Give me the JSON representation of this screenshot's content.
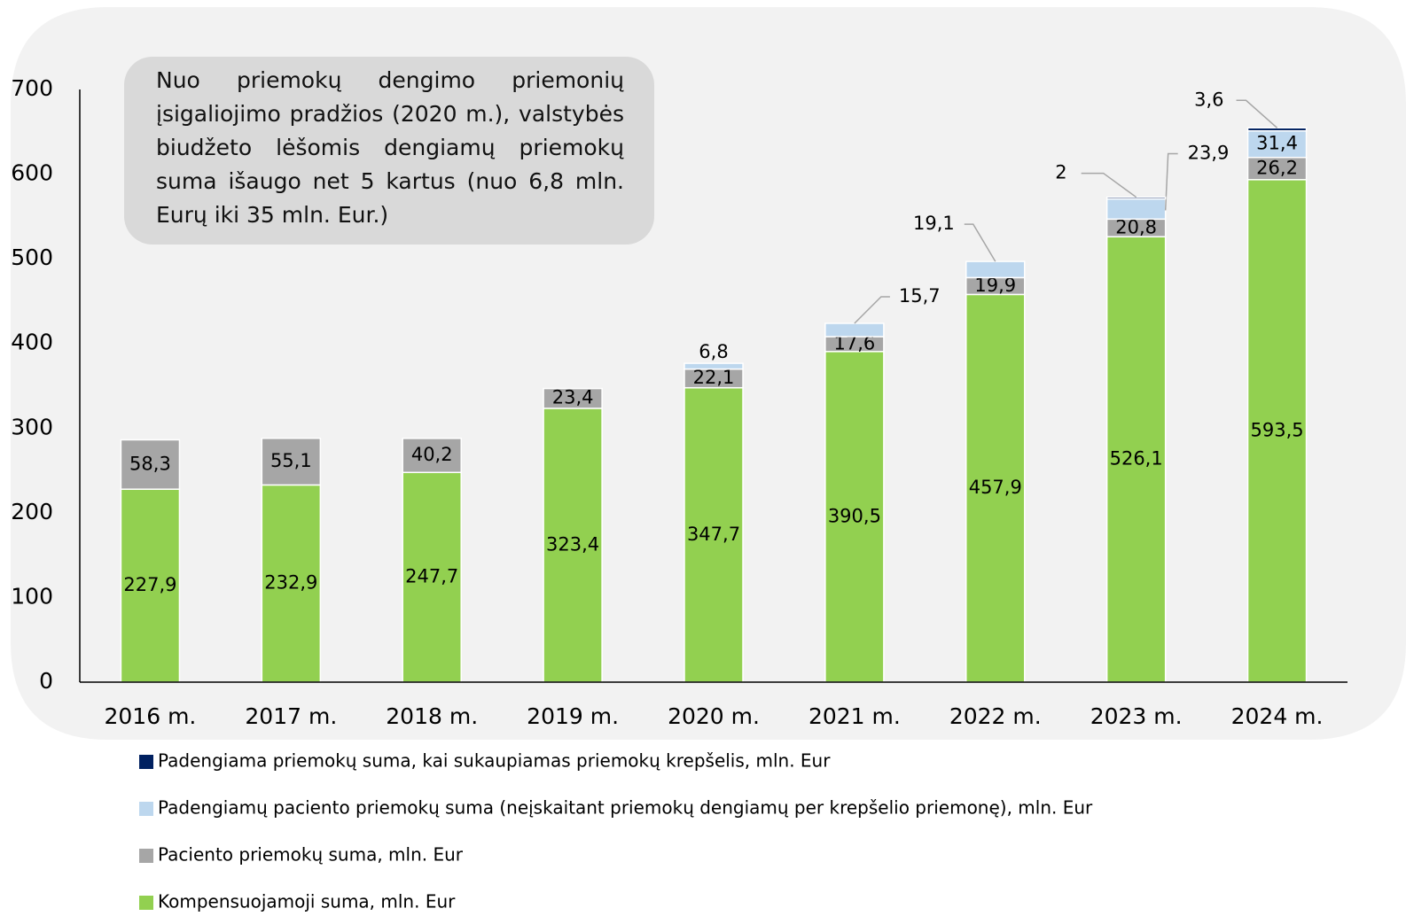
{
  "chart_data": {
    "type": "stacked_bar",
    "annotation": "Nuo priemokų dengimo priemonių įsigaliojimo pradžios (2020 m.), valstybės biudžeto lėšomis dengiamų priemokų suma išaugo net 5 kartus (nuo 6,8 mln. Eurų iki 35 mln. Eur.)",
    "categories": [
      "2016 m.",
      "2017 m.",
      "2018 m.",
      "2019 m.",
      "2020 m.",
      "2021 m.",
      "2022 m.",
      "2023 m.",
      "2024 m."
    ],
    "series": [
      {
        "name": "Kompensuojamoji suma, mln. Eur",
        "color": "#92d050",
        "values": [
          227.9,
          232.9,
          247.7,
          323.4,
          347.7,
          390.5,
          457.9,
          526.1,
          593.5
        ],
        "value_labels": [
          "227,9",
          "232,9",
          "247,7",
          "323,4",
          "347,7",
          "390,5",
          "457,9",
          "526,1",
          "593,5"
        ]
      },
      {
        "name": "Paciento priemokų suma, mln. Eur",
        "color": "#a6a6a6",
        "values": [
          58.3,
          55.1,
          40.2,
          23.4,
          22.1,
          17.6,
          19.9,
          20.8,
          26.2
        ],
        "value_labels": [
          "58,3",
          "55,1",
          "40,2",
          "23,4",
          "22,1",
          "17,6",
          "19,9",
          "20,8",
          "26,2"
        ]
      },
      {
        "name": "Padengiamų paciento priemokų suma (neįskaitant priemokų dengiamų per krepšelio priemonę), mln. Eur",
        "color": "#bdd7ee",
        "values": [
          null,
          null,
          null,
          null,
          6.8,
          15.7,
          19.1,
          23.9,
          31.4
        ],
        "value_labels": [
          null,
          null,
          null,
          null,
          "6,8",
          "15,7",
          "19,1",
          "23,9",
          "31,4"
        ]
      },
      {
        "name": "Padengiama priemokų suma, kai sukaupiamas priemokų krepšelis, mln. Eur",
        "color": "#002060",
        "values": [
          null,
          null,
          null,
          null,
          null,
          null,
          null,
          2,
          3.6
        ],
        "value_labels": [
          null,
          null,
          null,
          null,
          null,
          null,
          null,
          "2",
          "3,6"
        ]
      }
    ],
    "ylim": [
      0,
      700
    ],
    "yticks": [
      0,
      100,
      200,
      300,
      400,
      500,
      600,
      700
    ]
  }
}
